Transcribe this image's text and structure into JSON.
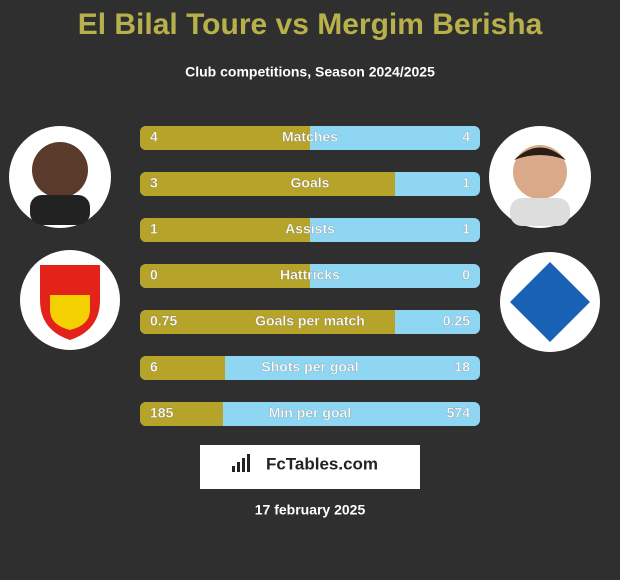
{
  "header": {
    "title": "El Bilal Toure vs Mergim Berisha",
    "subtitle": "Club competitions, Season 2024/2025"
  },
  "rows": [
    {
      "label": "Matches",
      "left": 4,
      "right": 4
    },
    {
      "label": "Goals",
      "left": 3,
      "right": 1
    },
    {
      "label": "Assists",
      "left": 1,
      "right": 1
    },
    {
      "label": "Hattricks",
      "left": 0,
      "right": 0
    },
    {
      "label": "Goals per match",
      "left": 0.75,
      "right": 0.25
    },
    {
      "label": "Shots per goal",
      "left": 6,
      "right": 18
    },
    {
      "label": "Min per goal",
      "left": 185,
      "right": 574
    }
  ],
  "brand": "FcTables.com",
  "date": "17 february 2025"
}
